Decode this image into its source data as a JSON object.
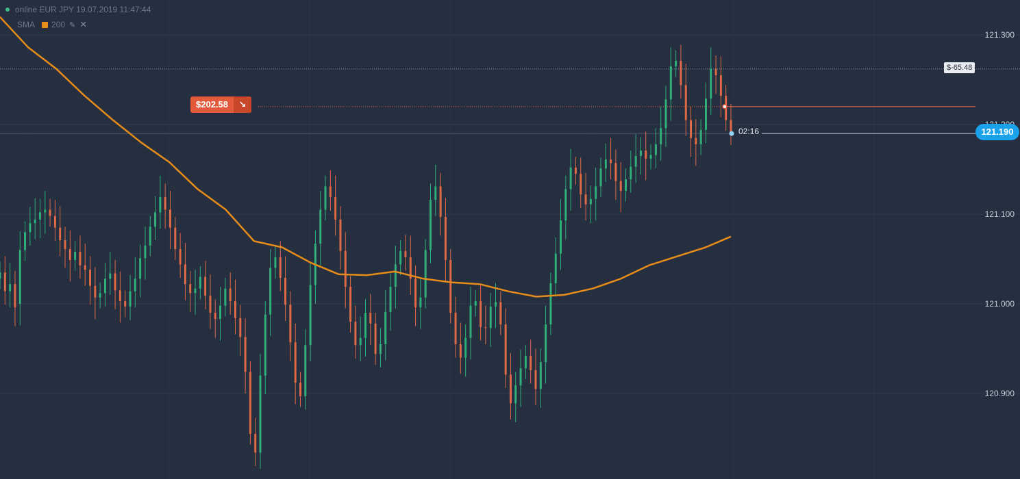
{
  "legend": {
    "instrument": "online EUR JPY 19.07.2019 11:47:44",
    "indicator_name": "SMA",
    "indicator_period": "200",
    "edit_icon": "pencil-icon",
    "remove_icon": "close-icon"
  },
  "trade": {
    "profit_label": "$202.58",
    "direction_icon": "arrow-down-right-icon",
    "level_label": "$-65.48",
    "timer": "02:16",
    "current_price": "121.190"
  },
  "colors": {
    "background": "#252f3f",
    "up_candle": "#2fb07a",
    "down_candle": "#e06a45",
    "sma": "#e88c1a",
    "current_price": "#1aa3ea",
    "deal_line": "#e25a3b"
  },
  "chart_data": {
    "type": "candlestick",
    "title": "online EUR JPY 19.07.2019 11:47:44",
    "ylim": [
      120.8,
      121.34
    ],
    "y_ticks": [
      "121.300",
      "121.200",
      "121.100",
      "121.000",
      "120.900"
    ],
    "grid": true,
    "indicator": {
      "name": "SMA",
      "period": 200,
      "points": [
        [
          0,
          121.32
        ],
        [
          20,
          121.286
        ],
        [
          40,
          121.262
        ],
        [
          60,
          121.232
        ],
        [
          80,
          121.205
        ],
        [
          100,
          121.18
        ],
        [
          120,
          121.158
        ],
        [
          140,
          121.128
        ],
        [
          160,
          121.105
        ],
        [
          180,
          121.07
        ],
        [
          200,
          121.063
        ],
        [
          220,
          121.046
        ],
        [
          240,
          121.033
        ],
        [
          260,
          121.032
        ],
        [
          280,
          121.036
        ],
        [
          300,
          121.028
        ],
        [
          320,
          121.024
        ],
        [
          340,
          121.022
        ],
        [
          360,
          121.014
        ],
        [
          380,
          121.008
        ],
        [
          400,
          121.01
        ],
        [
          420,
          121.017
        ],
        [
          440,
          121.028
        ],
        [
          460,
          121.043
        ],
        [
          480,
          121.053
        ],
        [
          500,
          121.063
        ],
        [
          518,
          121.075
        ]
      ]
    },
    "current_price": 121.19,
    "deal_price": 121.22,
    "level_price": 121.262,
    "candles": [
      [
        121.028,
        121.035
      ],
      [
        121.035,
        121.014
      ],
      [
        121.014,
        121.022
      ],
      [
        121.022,
        120.996
      ],
      [
        121.0,
        121.06
      ],
      [
        121.06,
        121.08
      ],
      [
        121.08,
        121.09
      ],
      [
        121.09,
        121.094
      ],
      [
        121.094,
        121.102
      ],
      [
        121.102,
        121.105
      ],
      [
        121.105,
        121.098
      ],
      [
        121.098,
        121.085
      ],
      [
        121.085,
        121.071
      ],
      [
        121.071,
        121.061
      ],
      [
        121.061,
        121.049
      ],
      [
        121.049,
        121.058
      ],
      [
        121.058,
        121.043
      ],
      [
        121.043,
        121.038
      ],
      [
        121.038,
        121.02
      ],
      [
        121.02,
        121.007
      ],
      [
        121.007,
        121.012
      ],
      [
        121.012,
        121.028
      ],
      [
        121.028,
        121.034
      ],
      [
        121.034,
        121.015
      ],
      [
        121.015,
        121.003
      ],
      [
        121.003,
        120.997
      ],
      [
        120.997,
        121.014
      ],
      [
        121.014,
        121.028
      ],
      [
        121.028,
        121.051
      ],
      [
        121.051,
        121.065
      ],
      [
        121.065,
        121.086
      ],
      [
        121.086,
        121.102
      ],
      [
        121.102,
        121.119
      ],
      [
        121.119,
        121.105
      ],
      [
        121.105,
        121.085
      ],
      [
        121.085,
        121.061
      ],
      [
        121.061,
        121.044
      ],
      [
        121.044,
        121.022
      ],
      [
        121.022,
        121.012
      ],
      [
        121.012,
        121.017
      ],
      [
        121.017,
        121.03
      ],
      [
        121.03,
        121.009
      ],
      [
        121.009,
        120.99
      ],
      [
        120.99,
        120.983
      ],
      [
        120.983,
        120.998
      ],
      [
        120.998,
        121.017
      ],
      [
        121.017,
        121.003
      ],
      [
        121.003,
        120.984
      ],
      [
        120.984,
        120.963
      ],
      [
        120.963,
        120.924
      ],
      [
        120.924,
        120.855
      ],
      [
        120.855,
        120.834
      ],
      [
        120.834,
        120.92
      ],
      [
        120.92,
        120.988
      ],
      [
        120.988,
        121.04
      ],
      [
        121.04,
        121.052
      ],
      [
        121.052,
        121.029
      ],
      [
        121.029,
        120.999
      ],
      [
        120.999,
        120.957
      ],
      [
        120.957,
        120.912
      ],
      [
        120.912,
        120.897
      ],
      [
        120.897,
        120.954
      ],
      [
        120.954,
        121.021
      ],
      [
        121.021,
        121.067
      ],
      [
        121.067,
        121.105
      ],
      [
        121.105,
        121.131
      ],
      [
        121.131,
        121.119
      ],
      [
        121.119,
        121.094
      ],
      [
        121.094,
        121.059
      ],
      [
        121.059,
        121.019
      ],
      [
        121.019,
        120.98
      ],
      [
        120.98,
        120.954
      ],
      [
        120.954,
        120.962
      ],
      [
        120.962,
        120.99
      ],
      [
        120.99,
        120.978
      ],
      [
        120.978,
        120.944
      ],
      [
        120.944,
        120.955
      ],
      [
        120.955,
        120.991
      ],
      [
        120.991,
        121.019
      ],
      [
        121.019,
        121.044
      ],
      [
        121.044,
        121.059
      ],
      [
        121.059,
        121.052
      ],
      [
        121.052,
        121.028
      ],
      [
        121.028,
        120.996
      ],
      [
        120.996,
        121.007
      ],
      [
        121.007,
        121.06
      ],
      [
        121.06,
        121.116
      ],
      [
        121.116,
        121.131
      ],
      [
        121.131,
        121.097
      ],
      [
        121.097,
        121.049
      ],
      [
        121.049,
        120.99
      ],
      [
        120.99,
        120.955
      ],
      [
        120.955,
        120.94
      ],
      [
        120.94,
        120.962
      ],
      [
        120.962,
        120.998
      ],
      [
        120.998,
        121.003
      ],
      [
        121.003,
        120.974
      ],
      [
        120.974,
        120.973
      ],
      [
        120.973,
        120.997
      ],
      [
        120.997,
        121.002
      ],
      [
        121.002,
        120.977
      ],
      [
        120.977,
        120.921
      ],
      [
        120.921,
        120.889
      ],
      [
        120.889,
        120.909
      ],
      [
        120.909,
        120.928
      ],
      [
        120.928,
        120.942
      ],
      [
        120.942,
        120.926
      ],
      [
        120.926,
        120.905
      ],
      [
        120.905,
        120.935
      ],
      [
        120.935,
        120.977
      ],
      [
        120.977,
        121.023
      ],
      [
        121.023,
        121.056
      ],
      [
        121.056,
        121.093
      ],
      [
        121.093,
        121.128
      ],
      [
        121.128,
        121.152
      ],
      [
        121.152,
        121.145
      ],
      [
        121.145,
        121.122
      ],
      [
        121.122,
        121.111
      ],
      [
        121.111,
        121.117
      ],
      [
        121.117,
        121.131
      ],
      [
        121.131,
        121.151
      ],
      [
        121.151,
        121.161
      ],
      [
        121.161,
        121.157
      ],
      [
        121.157,
        121.137
      ],
      [
        121.137,
        121.126
      ],
      [
        121.126,
        121.139
      ],
      [
        121.139,
        121.153
      ],
      [
        121.153,
        121.165
      ],
      [
        121.165,
        121.171
      ],
      [
        121.171,
        121.162
      ],
      [
        121.162,
        121.166
      ],
      [
        121.166,
        121.178
      ],
      [
        121.178,
        121.196
      ],
      [
        121.196,
        121.228
      ],
      [
        121.228,
        121.265
      ],
      [
        121.265,
        121.271
      ],
      [
        121.271,
        121.244
      ],
      [
        121.244,
        121.205
      ],
      [
        121.205,
        121.185
      ],
      [
        121.185,
        121.178
      ],
      [
        121.178,
        121.194
      ],
      [
        121.194,
        121.229
      ],
      [
        121.229,
        121.262
      ],
      [
        121.262,
        121.255
      ],
      [
        121.255,
        121.232
      ],
      [
        121.232,
        121.205
      ],
      [
        121.205,
        121.192
      ]
    ]
  }
}
